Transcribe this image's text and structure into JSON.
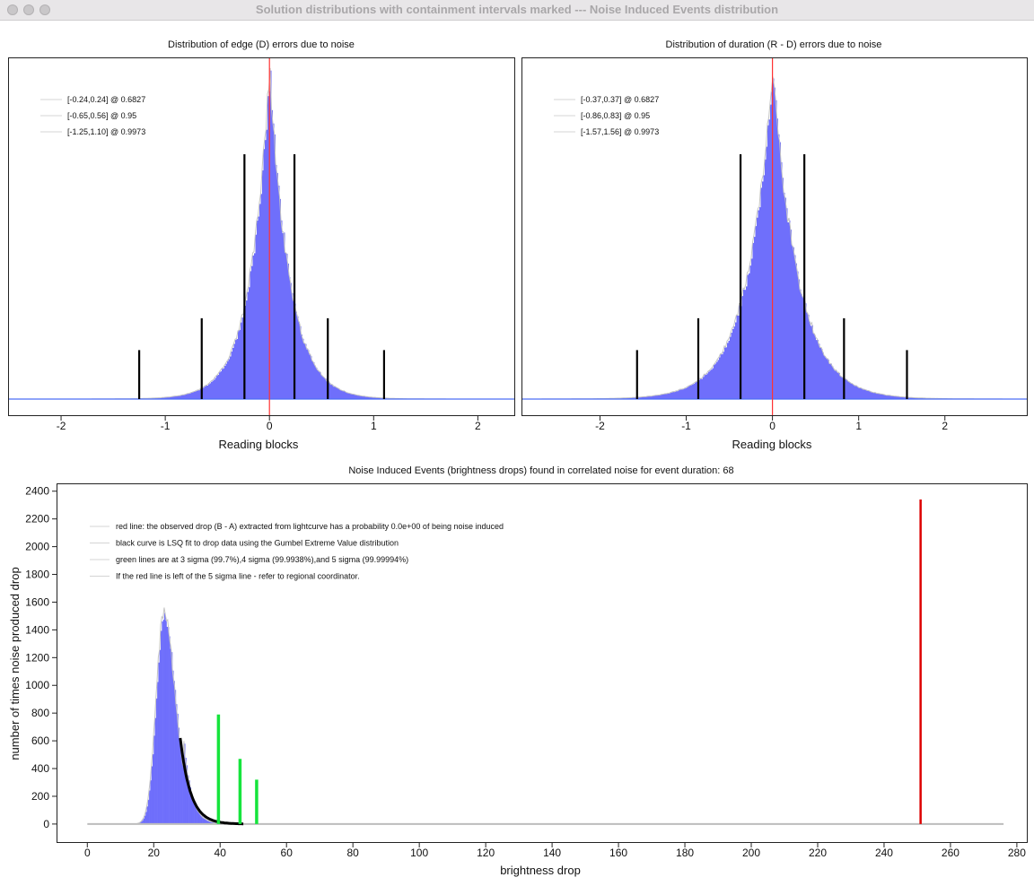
{
  "window": {
    "title": "Solution distributions with containment intervals marked --- Noise Induced Events distribution"
  },
  "colors": {
    "histogram_fill": "#6f6ffb",
    "histogram_outline": "#c4c4c4",
    "zero_line": "#ff3333",
    "interval_lines": "#000000",
    "observed_drop_line": "#dd0000",
    "sigma_lines": "#16e43c",
    "fit_curve": "#000000",
    "baseline": "#4c6ef5"
  },
  "chart_data": [
    {
      "type": "histogram",
      "title": "Distribution of edge (D) errors due to noise",
      "xlabel": "Reading blocks",
      "ylabel": "",
      "xlim": [
        -2.5,
        2.35
      ],
      "xticks": [
        -2,
        -1,
        0,
        1,
        2
      ],
      "distribution": {
        "center": 0.0,
        "scale": 0.19,
        "shape": "laplace-like peak"
      },
      "zero_line_x": 0.0,
      "legend_position": "top-left",
      "intervals": [
        {
          "label": "[-0.24,0.24] @ 0.6827",
          "low": -0.24,
          "high": 0.24,
          "level": 0.6827
        },
        {
          "label": "[-0.65,0.56] @ 0.95",
          "low": -0.65,
          "high": 0.56,
          "level": 0.95
        },
        {
          "label": "[-1.25,1.10] @ 0.9973",
          "low": -1.25,
          "high": 1.1,
          "level": 0.9973
        }
      ]
    },
    {
      "type": "histogram",
      "title": "Distribution of duration (R - D) errors due to noise",
      "xlabel": "Reading blocks",
      "ylabel": "",
      "xlim": [
        -2.9,
        2.95
      ],
      "xticks": [
        -2,
        -1,
        0,
        1,
        2
      ],
      "distribution": {
        "center": 0.0,
        "scale": 0.3,
        "shape": "laplace-like peak"
      },
      "zero_line_x": 0.0,
      "legend_position": "top-left",
      "intervals": [
        {
          "label": "[-0.37,0.37] @ 0.6827",
          "low": -0.37,
          "high": 0.37,
          "level": 0.6827
        },
        {
          "label": "[-0.86,0.83] @ 0.95",
          "low": -0.86,
          "high": 0.83,
          "level": 0.95
        },
        {
          "label": "[-1.57,1.56] @ 0.9973",
          "low": -1.57,
          "high": 1.56,
          "level": 0.9973
        }
      ]
    },
    {
      "type": "histogram",
      "title": "Noise Induced Events (brightness drops) found in correlated noise for event duration: 68",
      "xlabel": "brightness drop",
      "ylabel": "number of times noise produced drop",
      "xlim": [
        -9,
        283
      ],
      "ylim": [
        -130,
        2450
      ],
      "xticks": [
        0,
        20,
        40,
        60,
        80,
        100,
        120,
        140,
        160,
        180,
        200,
        220,
        240,
        260,
        280
      ],
      "yticks": [
        0,
        200,
        400,
        600,
        800,
        1000,
        1200,
        1400,
        1600,
        1800,
        2000,
        2200,
        2400
      ],
      "histogram": {
        "start": 13,
        "end": 47,
        "peak_x": 23,
        "peak_count": 1480,
        "max_count": 1570
      },
      "fit_curve": {
        "from_x": 28,
        "to_x": 47,
        "start_y": 620,
        "description": "Gumbel Extreme Value fit"
      },
      "baseline_range": [
        0,
        276
      ],
      "sigma_lines": [
        {
          "x": 39.5,
          "height": 790,
          "label": "3 sigma"
        },
        {
          "x": 46,
          "height": 470,
          "label": "4 sigma"
        },
        {
          "x": 51,
          "height": 320,
          "label": "5 sigma"
        }
      ],
      "observed_drop": {
        "x": 251,
        "height": 2340
      },
      "legend_position": "top-left",
      "legend": [
        "red line: the observed drop (B - A) extracted from lightcurve has a probability 0.0e+00 of being noise induced",
        "black curve is LSQ fit to drop data using the Gumbel Extreme Value distribution",
        "green lines are at 3 sigma (99.7%),4 sigma (99.9938%),and 5 sigma (99.99994%)",
        "If the red line is left of the 5 sigma line - refer to regional coordinator."
      ]
    }
  ]
}
